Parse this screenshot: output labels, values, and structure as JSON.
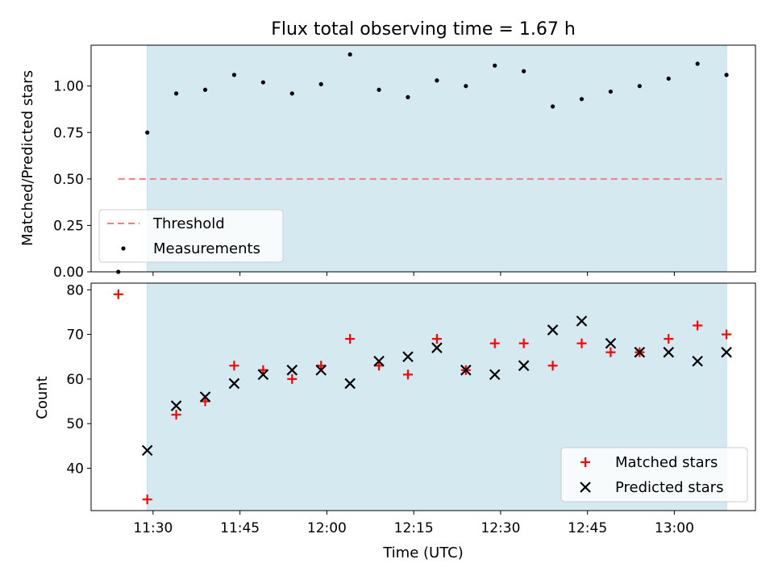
{
  "chart_data": [
    {
      "type": "scatter",
      "title": "Flux total observing time = 1.67 h",
      "ylabel": "Matched/Predicted stars",
      "xlabel": "",
      "ylim": [
        0,
        1.22
      ],
      "yticks": [
        "0.00",
        "0.25",
        "0.50",
        "0.75",
        "1.00"
      ],
      "shaded_region": {
        "x_start": "11:29",
        "x_end": "13:09",
        "color": "#d4eaf0"
      },
      "threshold": {
        "name": "Threshold",
        "value": 0.5,
        "x_start": "11:24",
        "x_end": "13:09",
        "color": "#f08080"
      },
      "series": [
        {
          "name": "Measurements",
          "marker": "dot",
          "color": "#000000",
          "x": [
            "11:24",
            "11:29",
            "11:34",
            "11:39",
            "11:44",
            "11:49",
            "11:54",
            "11:59",
            "12:04",
            "12:09",
            "12:14",
            "12:19",
            "12:24",
            "12:29",
            "12:34",
            "12:39",
            "12:44",
            "12:49",
            "12:54",
            "12:59",
            "13:04",
            "13:09"
          ],
          "y": [
            0.0,
            0.75,
            0.96,
            0.98,
            1.06,
            1.02,
            0.96,
            1.01,
            1.17,
            0.98,
            0.94,
            1.03,
            1.0,
            1.11,
            1.08,
            0.89,
            0.93,
            0.97,
            1.0,
            1.04,
            1.12,
            1.06
          ]
        }
      ],
      "legend": {
        "placement": "lower-left",
        "entries": [
          "Threshold",
          "Measurements"
        ]
      }
    },
    {
      "type": "scatter",
      "title": "",
      "ylabel": "Count",
      "xlabel": "Time (UTC)",
      "ylim": [
        30.5,
        81.5
      ],
      "yticks": [
        "40",
        "50",
        "60",
        "70",
        "80"
      ],
      "xticks": [
        "11:30",
        "11:45",
        "12:00",
        "12:15",
        "12:30",
        "12:45",
        "13:00"
      ],
      "shaded_region": {
        "x_start": "11:29",
        "x_end": "13:09",
        "color": "#d4eaf0"
      },
      "series": [
        {
          "name": "Matched stars",
          "marker": "plus",
          "color": "#ff0000",
          "x": [
            "11:24",
            "11:29",
            "11:34",
            "11:39",
            "11:44",
            "11:49",
            "11:54",
            "11:59",
            "12:04",
            "12:09",
            "12:14",
            "12:19",
            "12:24",
            "12:29",
            "12:34",
            "12:39",
            "12:44",
            "12:49",
            "12:54",
            "12:59",
            "13:04",
            "13:09"
          ],
          "y": [
            79,
            33,
            52,
            55,
            63,
            62,
            60,
            63,
            69,
            63,
            61,
            69,
            62,
            68,
            68,
            63,
            68,
            66,
            66,
            69,
            72,
            70
          ]
        },
        {
          "name": "Predicted stars",
          "marker": "x",
          "color": "#000000",
          "x": [
            "11:29",
            "11:34",
            "11:39",
            "11:44",
            "11:49",
            "11:54",
            "11:59",
            "12:04",
            "12:09",
            "12:14",
            "12:19",
            "12:24",
            "12:29",
            "12:34",
            "12:39",
            "12:44",
            "12:49",
            "12:54",
            "12:59",
            "13:04",
            "13:09"
          ],
          "y": [
            44,
            54,
            56,
            59,
            61,
            62,
            62,
            59,
            64,
            65,
            67,
            62,
            61,
            63,
            71,
            73,
            68,
            66,
            66,
            64,
            66
          ]
        }
      ],
      "legend": {
        "placement": "lower-right",
        "entries": [
          "Matched stars",
          "Predicted stars"
        ]
      }
    }
  ]
}
